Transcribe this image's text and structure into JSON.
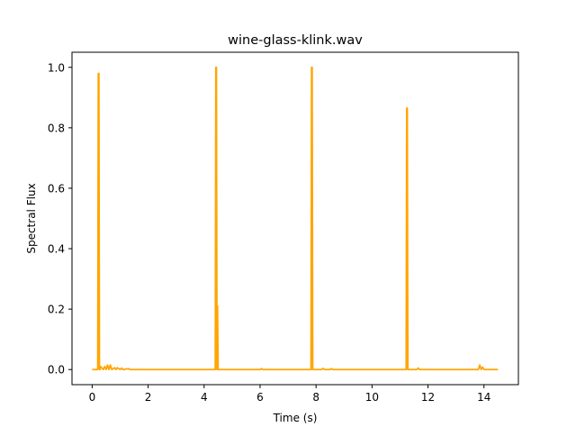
{
  "chart_data": {
    "type": "line",
    "title": "wine-glass-klink.wav",
    "xlabel": "Time (s)",
    "ylabel": "Spectral Flux",
    "xlim": [
      -0.72,
      15.23
    ],
    "ylim": [
      -0.05,
      1.05
    ],
    "xticks": [
      0,
      2,
      4,
      6,
      8,
      10,
      12,
      14
    ],
    "xtick_labels": [
      "0",
      "2",
      "4",
      "6",
      "8",
      "10",
      "12",
      "14"
    ],
    "yticks": [
      0.0,
      0.2,
      0.4,
      0.6,
      0.8,
      1.0
    ],
    "ytick_labels": [
      "0.0",
      "0.2",
      "0.4",
      "0.6",
      "0.8",
      "1.0"
    ],
    "grid": false,
    "legend": "none",
    "series": [
      {
        "color": "#ffa500",
        "x": [
          0.0,
          0.2,
          0.22,
          0.24,
          0.26,
          0.28,
          0.3,
          0.4,
          0.45,
          0.5,
          0.55,
          0.6,
          0.65,
          0.7,
          0.8,
          0.85,
          0.9,
          1.0,
          1.05,
          1.1,
          1.3,
          1.35,
          1.4,
          2.0,
          3.0,
          4.0,
          4.4,
          4.42,
          4.44,
          4.46,
          4.48,
          4.5,
          4.52,
          4.54,
          4.56,
          4.6,
          5.0,
          6.0,
          6.05,
          6.1,
          7.0,
          7.8,
          7.82,
          7.84,
          7.86,
          7.88,
          7.9,
          8.0,
          8.2,
          8.25,
          8.3,
          8.5,
          8.55,
          8.6,
          9.0,
          10.0,
          11.0,
          11.2,
          11.22,
          11.24,
          11.26,
          11.28,
          11.3,
          11.4,
          11.6,
          11.65,
          11.7,
          12.0,
          13.0,
          13.5,
          13.8,
          13.85,
          13.9,
          13.95,
          14.0,
          14.1,
          14.5
        ],
        "y": [
          0.0,
          0.0,
          0.98,
          0.98,
          0.0,
          0.0,
          0.01,
          0.0,
          0.01,
          0.0,
          0.015,
          0.0,
          0.015,
          0.0,
          0.006,
          0.0,
          0.006,
          0.0,
          0.005,
          0.0,
          0.003,
          0.0,
          0.0,
          0.0,
          0.0,
          0.0,
          0.0,
          1.0,
          1.0,
          0.0,
          0.21,
          0.0,
          0.0,
          0.0,
          0.0,
          0.0,
          0.0,
          0.0,
          0.003,
          0.0,
          0.0,
          0.0,
          0.0,
          1.0,
          1.0,
          0.0,
          0.0,
          0.0,
          0.0,
          0.004,
          0.0,
          0.0,
          0.003,
          0.0,
          0.0,
          0.0,
          0.0,
          0.0,
          0.0,
          0.865,
          0.865,
          0.0,
          0.0,
          0.0,
          0.0,
          0.005,
          0.0,
          0.0,
          0.0,
          0.0,
          0.0,
          0.015,
          0.0,
          0.008,
          0.0,
          0.0,
          0.0
        ]
      }
    ]
  }
}
